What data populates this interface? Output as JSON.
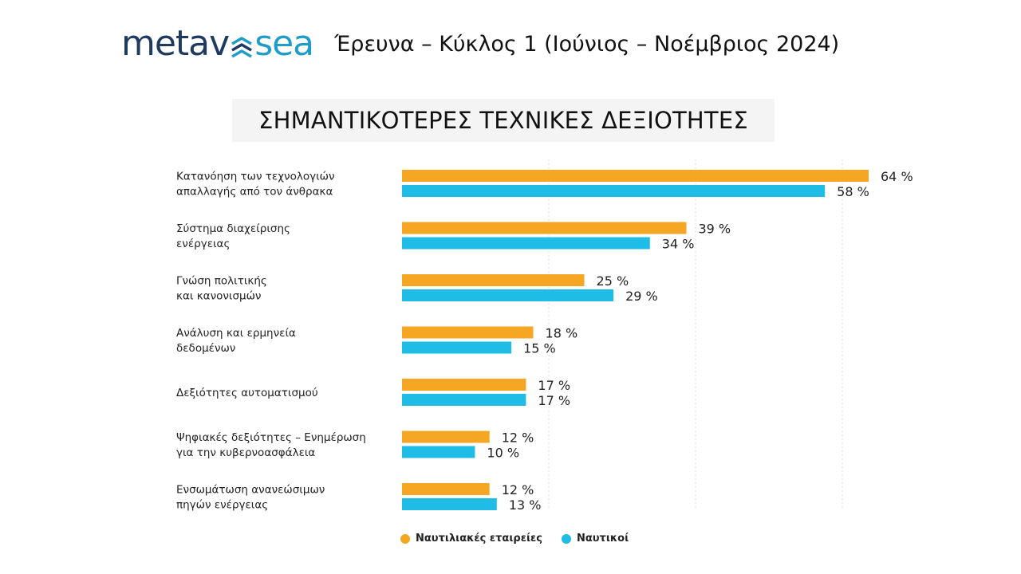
{
  "header": {
    "logo_part1": "metav",
    "logo_part2": "sea",
    "logo_icon": "wave-chevron-icon",
    "title": "Έρευνα – Κύκλος 1 (Ιούνιος – Νοέμβριος 2024)"
  },
  "colors": {
    "orange": "#f5a623",
    "blue": "#1fbde6",
    "logo_dark": "#1e3a5f",
    "logo_teal": "#1f9dc6"
  },
  "chart_data": {
    "type": "bar",
    "orientation": "horizontal",
    "title": "ΣΗΜΑΝΤΙΚΟΤΕΡΕΣ ΤΕΧΝΙΚΕΣ ΔΕΞΙΟΤΗΤΕΣ",
    "categories": [
      [
        "Κατανόηση των τεχνολογιών",
        "απαλλαγής από τον άνθρακα"
      ],
      [
        "Σύστημα διαχείρισης",
        "ενέργειας"
      ],
      [
        "Γνώση πολιτικής",
        "και κανονισμών"
      ],
      [
        "Ανάλυση και ερμηνεία",
        "δεδομένων"
      ],
      [
        "Δεξιότητες αυτοματισμού"
      ],
      [
        "Ψηφιακές δεξιότητες – Ενημέρωση",
        "για την κυβερνοασφάλεια"
      ],
      [
        "Ενσωμάτωση ανανεώσιμων",
        "πηγών ενέργειας"
      ]
    ],
    "series": [
      {
        "name": "Ναυτιλιακές εταιρείες",
        "values": [
          64,
          39,
          25,
          18,
          17,
          12,
          12
        ]
      },
      {
        "name": "Ναυτικοί",
        "values": [
          58,
          34,
          29,
          15,
          17,
          10,
          13
        ]
      }
    ],
    "value_suffix": " %",
    "xlim": [
      0,
      64
    ],
    "grid": "vertical dotted",
    "legend_position": "bottom"
  }
}
